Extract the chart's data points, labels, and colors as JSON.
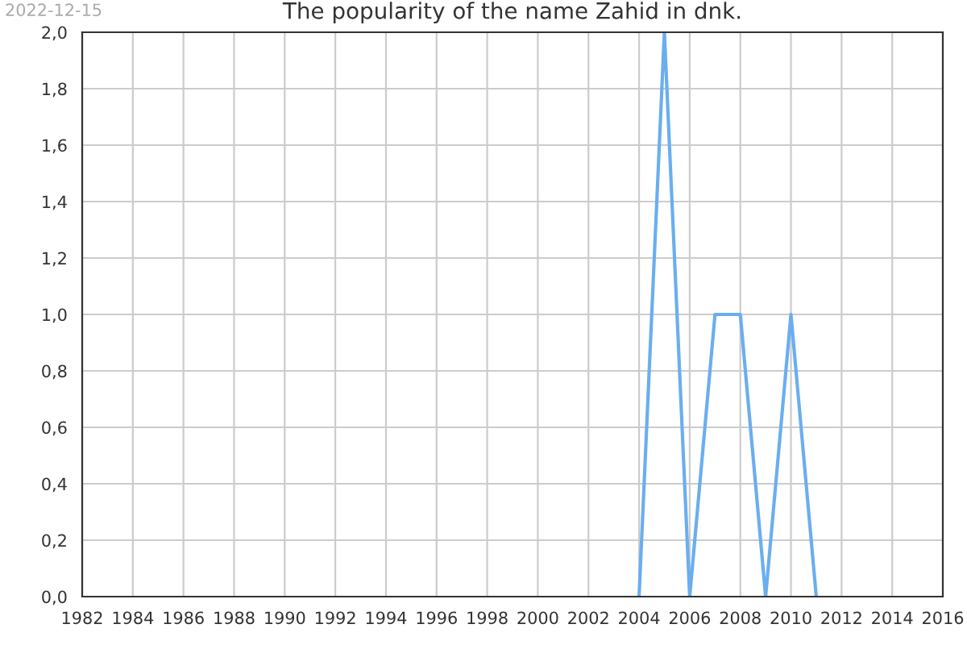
{
  "chart_data": {
    "type": "line",
    "title": "The popularity of the name Zahid in dnk.",
    "annotations": [
      "2022-12-15"
    ],
    "x": [
      2004,
      2005,
      2006,
      2007,
      2008,
      2009,
      2010,
      2011
    ],
    "series": [
      {
        "color": "#6aaef0",
        "values": [
          0,
          2,
          0,
          1,
          1,
          0,
          1,
          0
        ]
      }
    ],
    "xlim": [
      1982,
      2016
    ],
    "xticks": [
      1982,
      1984,
      1986,
      1988,
      1990,
      1992,
      1994,
      1996,
      1998,
      2000,
      2002,
      2004,
      2006,
      2008,
      2010,
      2012,
      2014,
      2016
    ],
    "ylim": [
      0,
      2
    ],
    "yticks": [
      {
        "value": 0,
        "label": "0,0"
      },
      {
        "value": 0.2,
        "label": "0,2"
      },
      {
        "value": 0.4,
        "label": "0,4"
      },
      {
        "value": 0.6,
        "label": "0,6"
      },
      {
        "value": 0.8,
        "label": "0,8"
      },
      {
        "value": 1,
        "label": "1,0"
      },
      {
        "value": 1.2,
        "label": "1,2"
      },
      {
        "value": 1.4,
        "label": "1,4"
      },
      {
        "value": 1.6,
        "label": "1,6"
      },
      {
        "value": 1.8,
        "label": "1,8"
      },
      {
        "value": 2,
        "label": "2,0"
      }
    ],
    "grid": true,
    "marker": "none",
    "line_style": "solid"
  }
}
